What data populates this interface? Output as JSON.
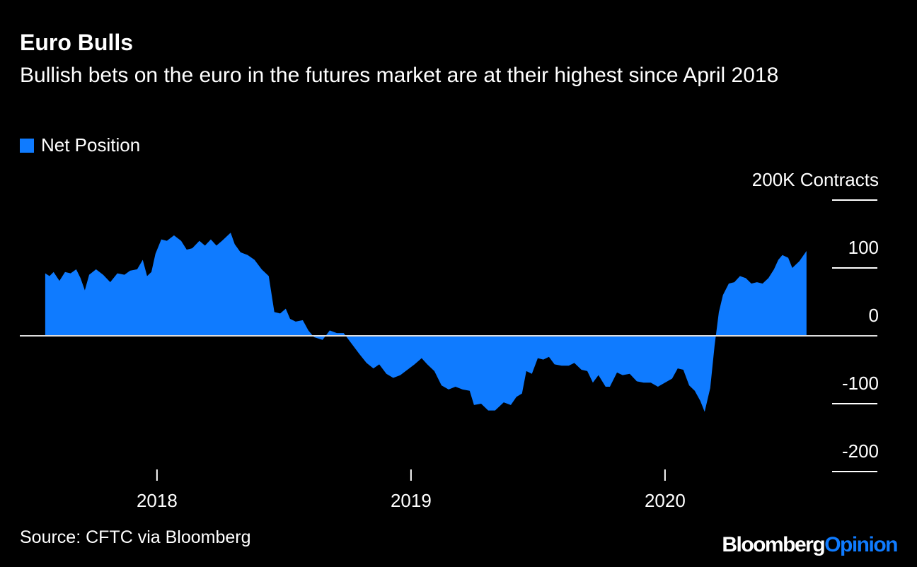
{
  "chart_data": {
    "type": "area",
    "title": "Euro Bulls",
    "subtitle": "Bullish bets on the euro in the futures market are at their highest since April 2018",
    "source": "Source: CFTC via Bloomberg",
    "brand": "Bloomberg",
    "brand_suffix": "Opinion",
    "xlim": [
      2017.46,
      2020.836
    ],
    "xticks": [
      2018,
      2019,
      2020
    ],
    "ylim": [
      -200,
      200
    ],
    "yticks": [
      {
        "value": 200,
        "label": "200K Contracts"
      },
      100,
      0,
      -100,
      -200
    ],
    "series": [
      {
        "name": "Net Position",
        "color": "#0f7bff",
        "x": [
          2017.56,
          2017.577,
          2017.593,
          2017.616,
          2017.638,
          2017.66,
          2017.682,
          2017.699,
          2017.716,
          2017.733,
          2017.76,
          2017.788,
          2017.816,
          2017.844,
          2017.872,
          2017.894,
          2017.922,
          2017.944,
          2017.961,
          2017.978,
          2017.994,
          2018.017,
          2018.039,
          2018.067,
          2018.095,
          2018.117,
          2018.139,
          2018.167,
          2018.189,
          2018.212,
          2018.234,
          2018.256,
          2018.29,
          2018.306,
          2018.329,
          2018.357,
          2018.384,
          2018.412,
          2018.44,
          2018.462,
          2018.485,
          2018.507,
          2018.524,
          2018.546,
          2018.574,
          2018.596,
          2018.618,
          2018.652,
          2018.68,
          2018.708,
          2018.735,
          2018.763,
          2018.797,
          2018.825,
          2018.852,
          2018.875,
          2018.903,
          2018.93,
          2018.958,
          2018.986,
          2019.014,
          2019.042,
          2019.064,
          2019.092,
          2019.12,
          2019.148,
          2019.175,
          2019.203,
          2019.231,
          2019.248,
          2019.276,
          2019.304,
          2019.331,
          2019.365,
          2019.393,
          2019.415,
          2019.437,
          2019.454,
          2019.476,
          2019.499,
          2019.521,
          2019.543,
          2019.565,
          2019.593,
          2019.621,
          2019.643,
          2019.671,
          2019.694,
          2019.716,
          2019.738,
          2019.766,
          2019.783,
          2019.811,
          2019.833,
          2019.861,
          2019.889,
          2019.916,
          2019.944,
          2019.972,
          2020.0,
          2020.028,
          2020.05,
          2020.072,
          2020.095,
          2020.117,
          2020.139,
          2020.156,
          2020.178,
          2020.195,
          2020.212,
          2020.228,
          2020.251,
          2020.273,
          2020.295,
          2020.318,
          2020.34,
          2020.362,
          2020.384,
          2020.407,
          2020.429,
          2020.446,
          2020.462,
          2020.485,
          2020.501,
          2020.529,
          2020.557
        ],
        "values": [
          92,
          88,
          94,
          81,
          94,
          92,
          98,
          85,
          67,
          90,
          98,
          90,
          79,
          92,
          90,
          96,
          98,
          112,
          88,
          94,
          121,
          142,
          140,
          148,
          140,
          127,
          129,
          140,
          133,
          142,
          133,
          140,
          152,
          135,
          123,
          119,
          112,
          98,
          88,
          35,
          33,
          40,
          25,
          21,
          23,
          8,
          -2,
          -6,
          8,
          4,
          4,
          -10,
          -27,
          -40,
          -48,
          -42,
          -56,
          -62,
          -58,
          -50,
          -42,
          -33,
          -42,
          -52,
          -73,
          -79,
          -75,
          -79,
          -81,
          -102,
          -100,
          -110,
          -110,
          -98,
          -102,
          -90,
          -85,
          -52,
          -56,
          -33,
          -35,
          -31,
          -42,
          -44,
          -44,
          -40,
          -50,
          -52,
          -69,
          -58,
          -75,
          -75,
          -54,
          -58,
          -56,
          -67,
          -69,
          -69,
          -75,
          -69,
          -63,
          -48,
          -50,
          -73,
          -81,
          -96,
          -112,
          -77,
          -15,
          35,
          60,
          77,
          79,
          88,
          85,
          77,
          79,
          77,
          85,
          98,
          112,
          119,
          115,
          100,
          110,
          125
        ]
      }
    ]
  }
}
